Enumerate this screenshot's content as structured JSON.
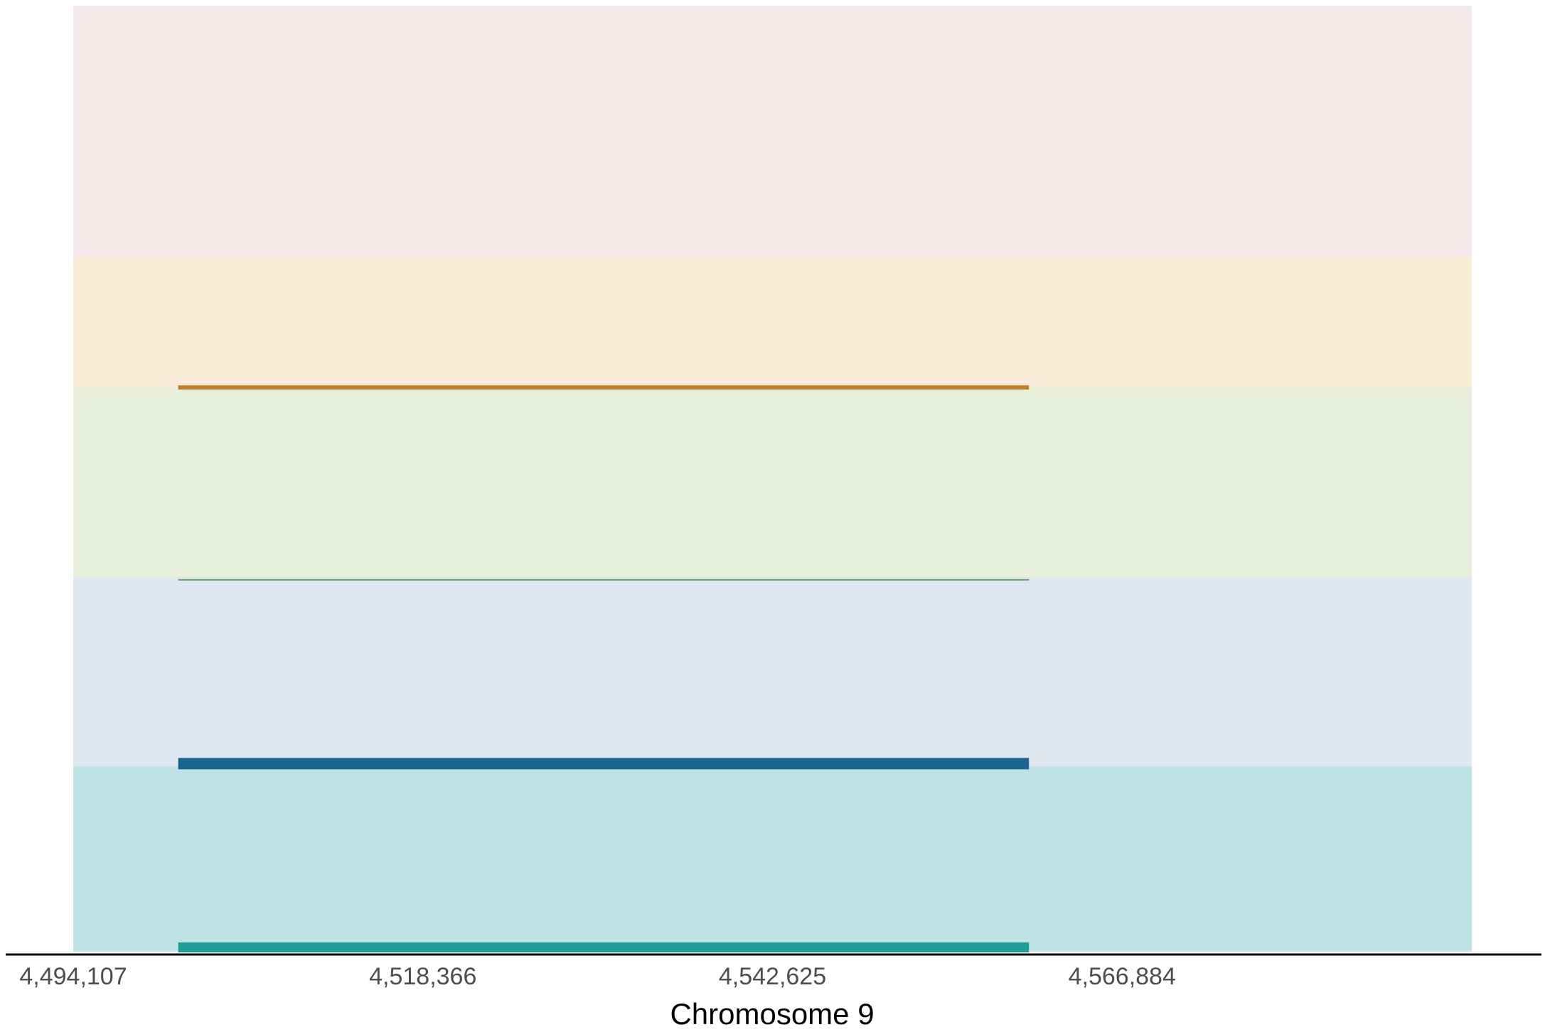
{
  "chart_data": {
    "type": "line",
    "title": "",
    "xlabel": "Chromosome 9",
    "ylabel": "",
    "xlim": [
      4494107,
      4591143
    ],
    "x_ticks": [
      4494107,
      4518366,
      4542625,
      4566884
    ],
    "x_tick_labels": [
      "4,494,107",
      "4,518,366",
      "4,542,625",
      "4,566,884"
    ],
    "grid": false,
    "legend": "none",
    "tracks": [
      {
        "color": "#f5e8e8",
        "height": 0.265
      },
      {
        "color": "#faecd9",
        "height": 0.138
      },
      {
        "color": "#e8f0db",
        "height": 0.2
      },
      {
        "color": "#dfe8f0",
        "height": 0.2
      },
      {
        "color": "#bfe2e4",
        "height": 0.195
      }
    ],
    "series": [
      {
        "color": "#c0802a",
        "start": 4501390,
        "end": 4560419,
        "level": 0.597,
        "weight": 6
      },
      {
        "color": "#5aa35a",
        "start": 4501390,
        "end": 4560419,
        "level": 0.394,
        "weight": 2
      },
      {
        "color": "#1a6490",
        "start": 4501390,
        "end": 4560419,
        "level": 0.2,
        "weight": 16
      },
      {
        "color": "#1f9e99",
        "start": 4501390,
        "end": 4560419,
        "level": 0.006,
        "weight": 14
      }
    ]
  }
}
